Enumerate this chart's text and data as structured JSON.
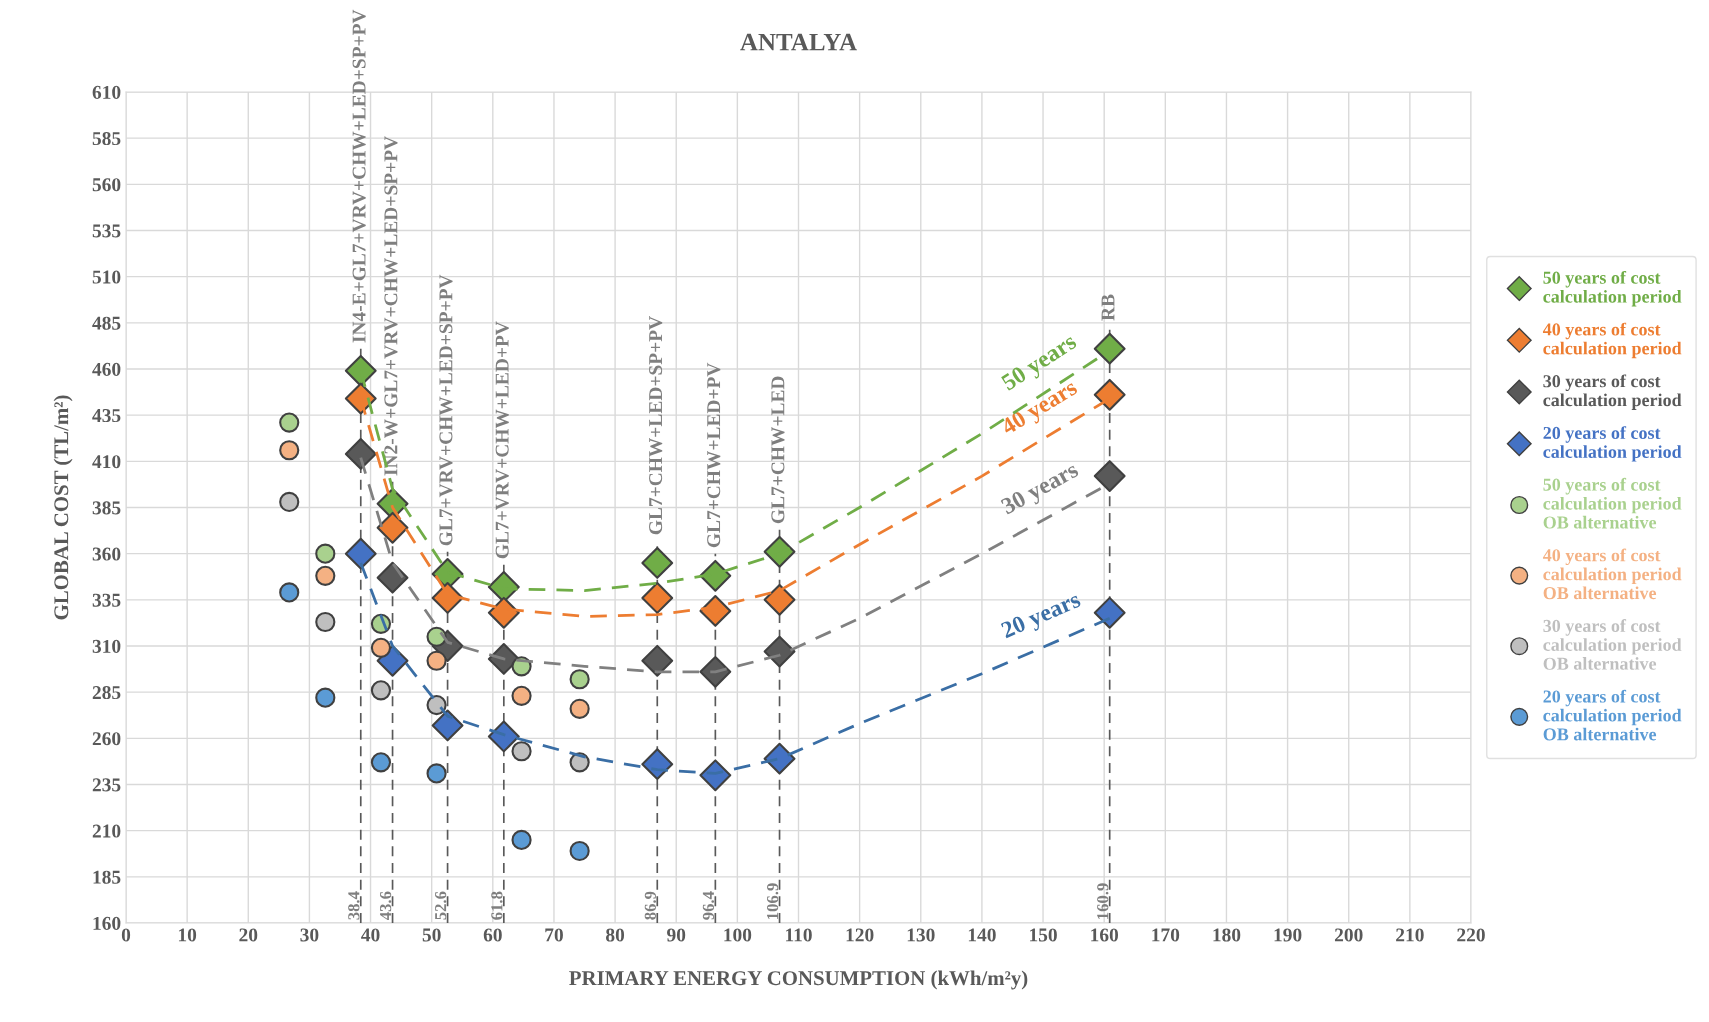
{
  "chart_data": {
    "type": "scatter",
    "title": "ANTALYA",
    "xlabel": "PRIMARY ENERGY CONSUMPTION (kWh/m²y)",
    "ylabel": "GLOBAL COST (TL/m²)",
    "xlim": [
      0,
      220
    ],
    "xticks": [
      0,
      10,
      20,
      30,
      40,
      50,
      60,
      70,
      80,
      90,
      100,
      110,
      120,
      130,
      140,
      150,
      160,
      170,
      180,
      190,
      200,
      210,
      220
    ],
    "ylim": [
      160,
      610
    ],
    "yticks": [
      160,
      185,
      210,
      235,
      260,
      285,
      310,
      335,
      360,
      385,
      410,
      435,
      460,
      485,
      510,
      535,
      560,
      585,
      610
    ],
    "grid": true,
    "legend": "right",
    "annotations": [
      {
        "text": "38.4",
        "x": 38.4,
        "y": 160
      },
      {
        "text": "43.6",
        "x": 43.6,
        "y": 160
      },
      {
        "text": "52.6",
        "x": 52.6,
        "y": 160
      },
      {
        "text": "61.8",
        "x": 61.8,
        "y": 160
      },
      {
        "text": "86.9",
        "x": 86.9,
        "y": 160
      },
      {
        "text": "96.4",
        "x": 96.4,
        "y": 160
      },
      {
        "text": "106.9",
        "x": 106.9,
        "y": 160
      },
      {
        "text": "160.9",
        "x": 160.9,
        "y": 160
      }
    ],
    "series": [
      {
        "name": "50 years of cost calculation period",
        "marker": "diamond",
        "color": "#70ad47",
        "x": [
          38.4,
          43.6,
          52.6,
          61.8,
          86.9,
          96.4,
          106.9,
          160.9
        ],
        "values": [
          459,
          387,
          349,
          342,
          355,
          348,
          361,
          471
        ]
      },
      {
        "name": "40 years of cost calculation period",
        "marker": "diamond",
        "color": "#ed7d31",
        "x": [
          38.4,
          43.6,
          52.6,
          61.8,
          86.9,
          96.4,
          106.9,
          160.9
        ],
        "values": [
          444,
          374,
          336,
          328,
          336,
          329,
          335,
          446
        ]
      },
      {
        "name": "30 years of cost calculation period",
        "marker": "diamond",
        "color": "#595959",
        "x": [
          38.4,
          43.6,
          52.6,
          61.8,
          86.9,
          96.4,
          106.9,
          160.9
        ],
        "values": [
          414,
          347,
          310,
          303,
          302,
          296,
          307,
          402
        ]
      },
      {
        "name": "20 years of cost calculation period",
        "marker": "diamond",
        "color": "#4472c4",
        "x": [
          38.4,
          43.6,
          52.6,
          61.8,
          86.9,
          96.4,
          106.9,
          160.9
        ],
        "values": [
          360,
          302,
          267,
          261,
          246,
          240,
          249,
          328
        ]
      },
      {
        "name": "50 years of cost calculation period OB alternative",
        "marker": "circle",
        "color": "#a9d18e",
        "x": [
          26.7,
          32.6,
          41.7,
          50.8,
          64.7,
          74.2
        ],
        "values": [
          431,
          360,
          322,
          315,
          299,
          292
        ]
      },
      {
        "name": "40 years of cost calculation period OB alternative",
        "marker": "circle",
        "color": "#f4b183",
        "x": [
          26.7,
          32.6,
          41.7,
          50.8,
          64.7,
          74.2
        ],
        "values": [
          416,
          348,
          309,
          302,
          283,
          276
        ]
      },
      {
        "name": "30 years of cost calculation period OB alternative",
        "marker": "circle",
        "color": "#bfbfbf",
        "x": [
          26.7,
          32.6,
          41.7,
          50.8,
          64.7,
          74.2
        ],
        "values": [
          388,
          323,
          286,
          278,
          253,
          247
        ]
      },
      {
        "name": "20 years of cost calculation period OB alternative",
        "marker": "circle",
        "color": "#5b9bd5",
        "x": [
          26.7,
          32.6,
          41.7,
          50.8,
          64.7,
          74.2
        ],
        "values": [
          339,
          282,
          247,
          241,
          205,
          199
        ]
      },
      {
        "name": "50 years",
        "type": "line",
        "line_style": "dashed",
        "color": "#70ad47",
        "x": [
          38.4,
          43.6,
          52.6,
          61.8,
          75,
          86.9,
          96.4,
          106.9,
          120,
          140,
          160.9
        ],
        "values": [
          459,
          395,
          350,
          341,
          340,
          344,
          349,
          360,
          385,
          425,
          470
        ]
      },
      {
        "name": "40 years",
        "type": "line",
        "line_style": "dashed",
        "color": "#ed7d31",
        "x": [
          38.4,
          43.6,
          52.6,
          61.8,
          75,
          86.9,
          96.4,
          106.9,
          120,
          140,
          160.9
        ],
        "values": [
          444,
          385,
          338,
          330,
          326,
          327,
          331,
          340,
          365,
          402,
          444
        ]
      },
      {
        "name": "30 years",
        "type": "line",
        "line_style": "dashed",
        "color": "#808080",
        "x": [
          38.4,
          43.6,
          52.6,
          61.8,
          75,
          86.9,
          96.4,
          106.9,
          120,
          140,
          160.9
        ],
        "values": [
          412,
          355,
          312,
          303,
          299,
          296,
          296,
          305,
          325,
          360,
          398
        ]
      },
      {
        "name": "20 years",
        "type": "line",
        "line_style": "dashed",
        "color": "#3a6ea5",
        "x": [
          38.4,
          43.6,
          52.6,
          61.8,
          75,
          86.9,
          96.4,
          106.9,
          120,
          140,
          160.9
        ],
        "values": [
          355,
          310,
          272,
          262,
          250,
          243,
          241,
          249,
          268,
          295,
          325
        ]
      }
    ],
    "ref_lines": [
      {
        "axis": "x",
        "value": 38.4,
        "label": "IN4-E+GL7+VRV+CHW+LED+SP+PV",
        "color": "#595959",
        "line_style": "dashed"
      },
      {
        "axis": "x",
        "value": 43.6,
        "label": "IN2-W+GL7+VRV+CHW+LED+SP+PV",
        "color": "#595959",
        "line_style": "dashed"
      },
      {
        "axis": "x",
        "value": 52.6,
        "label": "GL7+VRV+CHW+LED+SP+PV",
        "color": "#595959",
        "line_style": "dashed"
      },
      {
        "axis": "x",
        "value": 61.8,
        "label": "GL7+VRV+CHW+LED+PV",
        "color": "#595959",
        "line_style": "dashed"
      },
      {
        "axis": "x",
        "value": 86.9,
        "label": "GL7+CHW+LED+SP+PV",
        "color": "#595959",
        "line_style": "dashed"
      },
      {
        "axis": "x",
        "value": 96.4,
        "label": "GL7+CHW+LED+PV",
        "color": "#595959",
        "line_style": "dashed"
      },
      {
        "axis": "x",
        "value": 106.9,
        "label": "GL7+CHW+LED",
        "color": "#595959",
        "line_style": "dashed"
      },
      {
        "axis": "x",
        "value": 160.9,
        "label": "RB",
        "color": "#595959",
        "line_style": "dashed"
      }
    ]
  }
}
